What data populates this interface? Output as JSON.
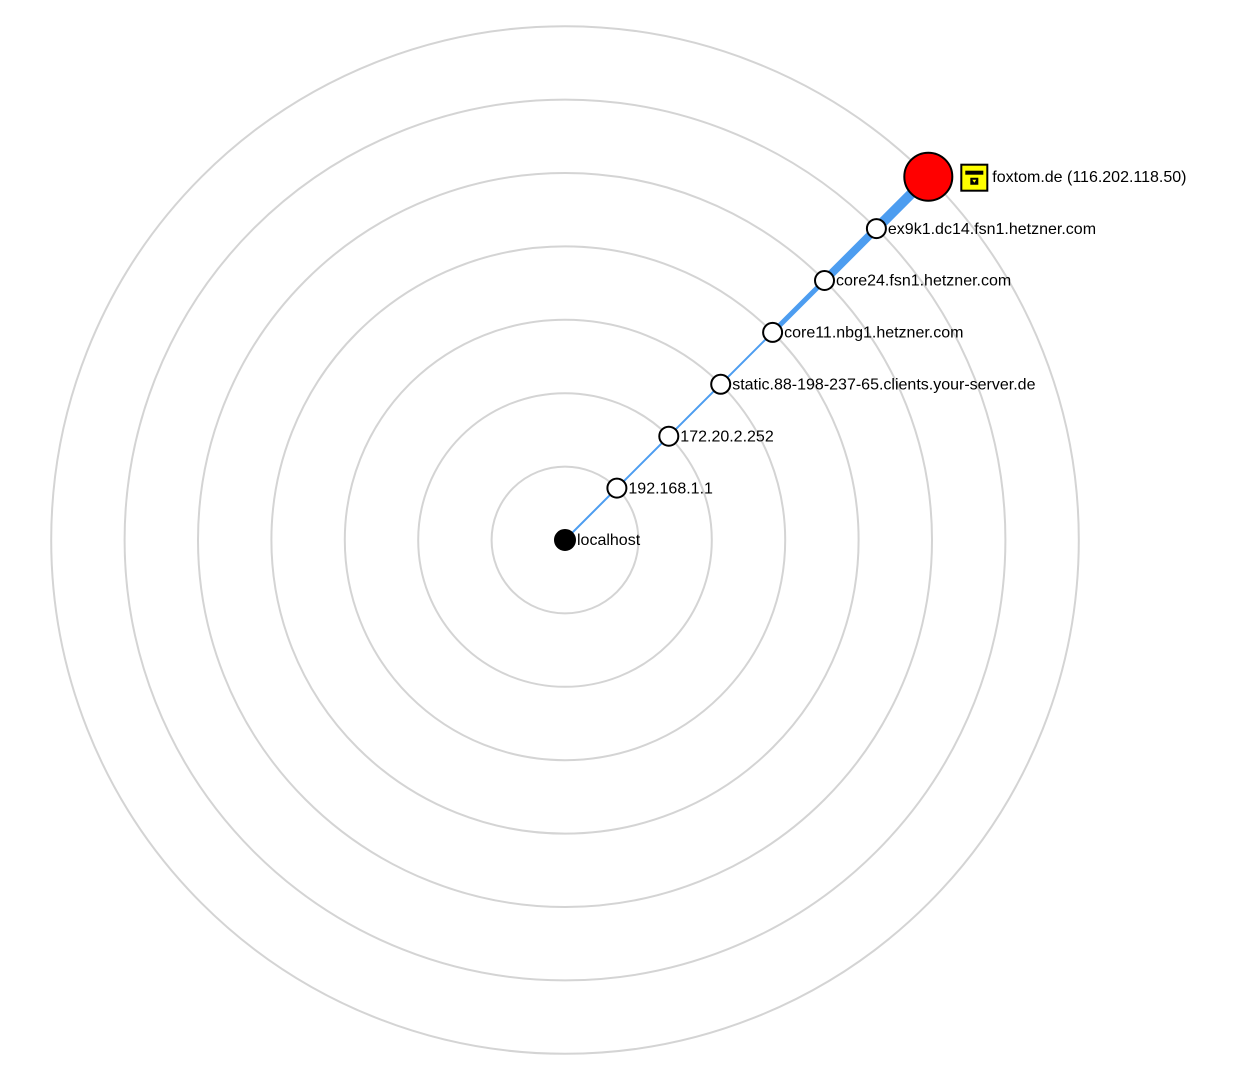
{
  "nodes": [
    {
      "label": "localhost"
    },
    {
      "label": "192.168.1.1"
    },
    {
      "label": "172.20.2.252"
    },
    {
      "label": "static.88-198-237-65.clients.your-server.de"
    },
    {
      "label": "core11.nbg1.hetzner.com"
    },
    {
      "label": "core24.fsn1.hetzner.com"
    },
    {
      "label": "ex9k1.dc14.fsn1.hetzner.com"
    },
    {
      "label": "foxtom.de (116.202.118.50)"
    }
  ]
}
